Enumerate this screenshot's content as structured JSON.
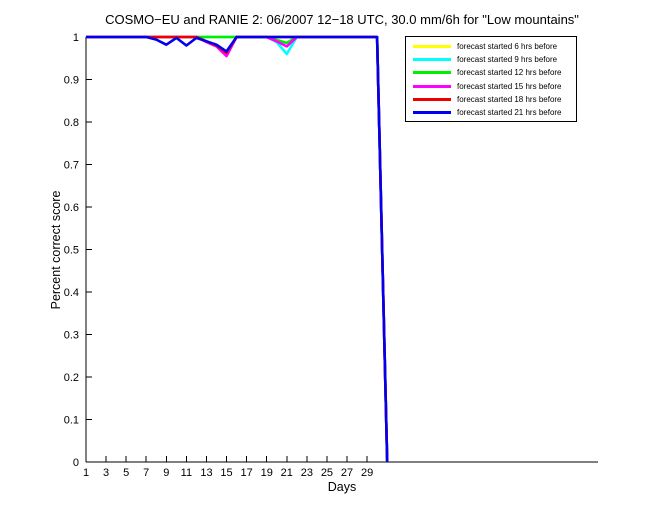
{
  "chart_data": {
    "type": "line",
    "title": "COSMO−EU and RANIE 2: 06/2007 12−18 UTC, 30.0 mm/6h for \"Low mountains\"",
    "xlabel": "Days",
    "ylabel": "Percent correct score",
    "xlim": [
      1,
      52
    ],
    "ylim": [
      0,
      1
    ],
    "xticks": [
      1,
      3,
      5,
      7,
      9,
      11,
      13,
      15,
      17,
      19,
      21,
      23,
      25,
      27,
      29
    ],
    "yticks": [
      0,
      0.1,
      0.2,
      0.3,
      0.4,
      0.5,
      0.6,
      0.7,
      0.8,
      0.9,
      1
    ],
    "grid": false,
    "legend_position": "top-right",
    "x": [
      1,
      2,
      3,
      4,
      5,
      6,
      7,
      8,
      9,
      10,
      11,
      12,
      13,
      14,
      15,
      16,
      17,
      18,
      19,
      20,
      21,
      22,
      23,
      24,
      25,
      26,
      27,
      28,
      29,
      30,
      31
    ],
    "series": [
      {
        "name": "forecast started 6 hrs before",
        "color": "#ffff00",
        "values": [
          1,
          1,
          1,
          1,
          1,
          1,
          1,
          1,
          1,
          1,
          1,
          1,
          1,
          1,
          1,
          1,
          1,
          1,
          1,
          1,
          1,
          1,
          1,
          1,
          1,
          1,
          1,
          1,
          1,
          1,
          0
        ]
      },
      {
        "name": "forecast started 9 hrs before",
        "color": "#00ffff",
        "values": [
          1,
          1,
          1,
          1,
          1,
          1,
          1,
          1,
          1,
          1,
          1,
          1,
          1,
          1,
          1,
          1,
          1,
          1,
          1,
          0.988,
          0.96,
          1,
          1,
          1,
          1,
          1,
          1,
          1,
          1,
          1,
          0
        ]
      },
      {
        "name": "forecast started 12 hrs before",
        "color": "#00ee00",
        "values": [
          1,
          1,
          1,
          1,
          1,
          1,
          1,
          1,
          1,
          1,
          1,
          1,
          1,
          1,
          1,
          1,
          1,
          1,
          1,
          0.993,
          0.986,
          1,
          1,
          1,
          1,
          1,
          1,
          1,
          1,
          1,
          0
        ]
      },
      {
        "name": "forecast started 15 hrs before",
        "color": "#ff00ff",
        "values": [
          1,
          1,
          1,
          1,
          1,
          1,
          1,
          1,
          1,
          1,
          1,
          1,
          0.988,
          0.978,
          0.955,
          1,
          1,
          1,
          1,
          0.99,
          0.978,
          1,
          1,
          1,
          1,
          1,
          1,
          1,
          1,
          1,
          0
        ]
      },
      {
        "name": "forecast started 18 hrs before",
        "color": "#ee0000",
        "values": [
          1,
          1,
          1,
          1,
          1,
          1,
          1,
          1,
          1,
          1,
          1,
          1,
          0.99,
          0.98,
          0.963,
          1,
          1,
          1,
          1,
          1,
          1,
          1,
          1,
          1,
          1,
          1,
          1,
          1,
          1,
          1,
          0
        ]
      },
      {
        "name": "forecast started 21 hrs before",
        "color": "#0000ee",
        "values": [
          1,
          1,
          1,
          1,
          1,
          1,
          1,
          0.994,
          0.982,
          0.998,
          0.98,
          0.998,
          0.99,
          0.982,
          0.966,
          1,
          1,
          1,
          1,
          1,
          1,
          1,
          1,
          1,
          1,
          1,
          1,
          1,
          1,
          1,
          0
        ]
      }
    ]
  }
}
